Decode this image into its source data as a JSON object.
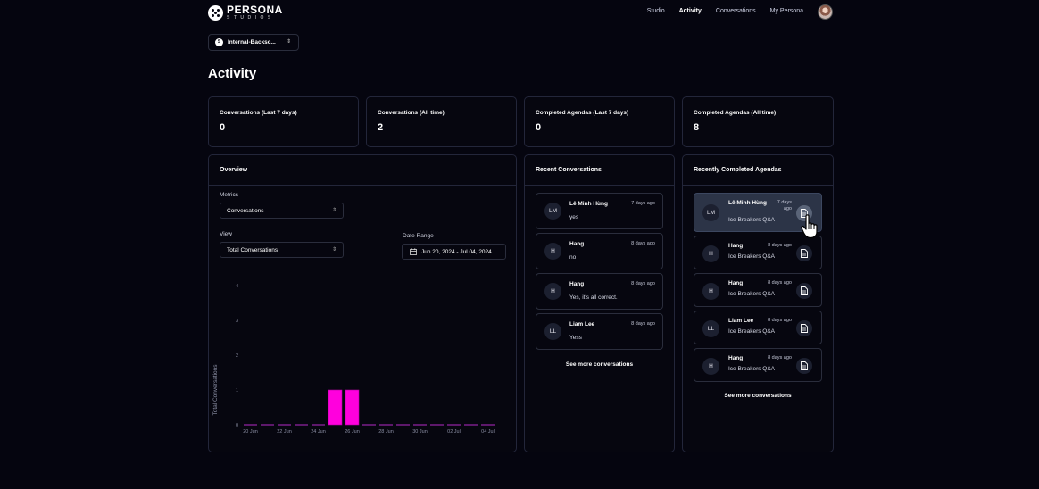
{
  "brand": {
    "title": "PERSONA",
    "subtitle": "STUDIOS"
  },
  "nav": [
    {
      "label": "Studio",
      "active": false
    },
    {
      "label": "Activity",
      "active": true
    },
    {
      "label": "Conversations",
      "active": false
    },
    {
      "label": "My Persona",
      "active": false
    }
  ],
  "workspace": {
    "initial": "S",
    "name": "Internal-Backsc..."
  },
  "page_title": "Activity",
  "stats": [
    {
      "label": "Conversations (Last 7 days)",
      "value": "0"
    },
    {
      "label": "Conversations (All time)",
      "value": "2"
    },
    {
      "label": "Completed Agendas (Last 7 days)",
      "value": "0"
    },
    {
      "label": "Completed Agendas (All time)",
      "value": "8"
    }
  ],
  "overview": {
    "title": "Overview",
    "metrics_label": "Metrics",
    "metrics_value": "Conversations",
    "view_label": "View",
    "view_value": "Total Conversations",
    "date_range_label": "Date Range",
    "date_range_value": "Jun 20, 2024 - Jul 04, 2024"
  },
  "chart_data": {
    "type": "bar",
    "ylabel": "Total Conversations",
    "xlabel": "",
    "ylim": [
      0,
      4
    ],
    "yticks": [
      "0",
      "1",
      "2",
      "3",
      "4"
    ],
    "categories": [
      "20 Jun",
      "21 Jun",
      "22 Jun",
      "23 Jun",
      "24 Jun",
      "25 Jun",
      "26 Jun",
      "27 Jun",
      "28 Jun",
      "29 Jun",
      "30 Jun",
      "01 Jul",
      "02 Jul",
      "03 Jul",
      "04 Jul"
    ],
    "xtick_labels": [
      "20 Jun",
      "22 Jun",
      "24 Jun",
      "26 Jun",
      "28 Jun",
      "30 Jun",
      "02 Jul",
      "04 Jul"
    ],
    "values": [
      0,
      0,
      0,
      0,
      0,
      1,
      1,
      0,
      0,
      0,
      0,
      0,
      0,
      0,
      0
    ],
    "bar_color": "#ff00dd",
    "baseline_color": "#7a1f8a"
  },
  "recent": {
    "title": "Recent Conversations",
    "items": [
      {
        "initials": "LM",
        "name": "Lê Minh Hùng",
        "time": "7 days ago",
        "message": "yes"
      },
      {
        "initials": "H",
        "name": "Hang",
        "time": "8 days ago",
        "message": "no"
      },
      {
        "initials": "H",
        "name": "Hang",
        "time": "8 days ago",
        "message": "Yes, it's all correct."
      },
      {
        "initials": "LL",
        "name": "Liam Lee",
        "time": "8 days ago",
        "message": "Yess"
      }
    ],
    "see_more": "See more conversations"
  },
  "agendas": {
    "title": "Recently Completed Agendas",
    "items": [
      {
        "initials": "LM",
        "name": "Lê Minh Hùng",
        "time": "7 days ago",
        "agenda": "Ice Breakers Q&A"
      },
      {
        "initials": "H",
        "name": "Hang",
        "time": "8 days ago",
        "agenda": "Ice Breakers Q&A"
      },
      {
        "initials": "H",
        "name": "Hang",
        "time": "8 days ago",
        "agenda": "Ice Breakers Q&A"
      },
      {
        "initials": "LL",
        "name": "Liam Lee",
        "time": "8 days ago",
        "agenda": "Ice Breakers Q&A"
      },
      {
        "initials": "H",
        "name": "Hang",
        "time": "8 days ago",
        "agenda": "Ice Breakers Q&A"
      }
    ],
    "see_more": "See more conversations"
  }
}
